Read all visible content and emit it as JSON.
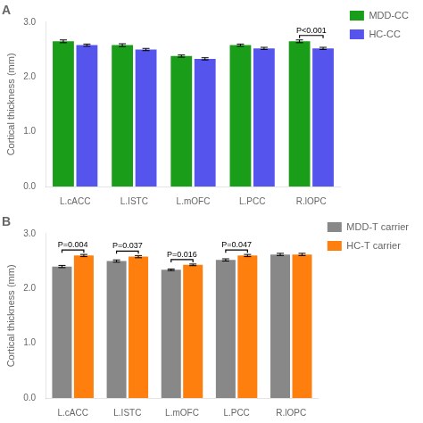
{
  "chart_data": [
    {
      "type": "bar",
      "title": "A",
      "categories": [
        "L.cACC",
        "L.ISTC",
        "L.mOFC",
        "L.PCC",
        "R.lOPC"
      ],
      "series": [
        {
          "name": "MDD-CC",
          "color": "#1a9e1a",
          "values": [
            2.65,
            2.58,
            2.38,
            2.58,
            2.65
          ],
          "errors": [
            0.025,
            0.025,
            0.02,
            0.02,
            0.025
          ]
        },
        {
          "name": "HC-CC",
          "color": "#5555ee",
          "values": [
            2.58,
            2.5,
            2.33,
            2.52,
            2.52
          ],
          "errors": [
            0.02,
            0.02,
            0.02,
            0.02,
            0.02
          ]
        }
      ],
      "ylabel": "Cortical thickness (mm)",
      "ylim": [
        0,
        3.0
      ],
      "yticks": [
        {
          "value": 0,
          "label": "0.0"
        },
        {
          "value": 1.0,
          "label": "1.0"
        },
        {
          "value": 2.0,
          "label": "2.0"
        },
        {
          "value": 3.0,
          "label": "3.0"
        }
      ],
      "grid": false,
      "legend": "right",
      "annotations": [
        {
          "text": "P<0.001",
          "category": "R.lOPC"
        }
      ]
    },
    {
      "type": "bar",
      "title": "B",
      "categories": [
        "L.cACC",
        "L.ISTC",
        "L.mOFC",
        "L.PCC",
        "R.lOPC"
      ],
      "series": [
        {
          "name": "MDD-T carrier",
          "color": "#888888",
          "values": [
            2.4,
            2.5,
            2.34,
            2.52,
            2.62
          ],
          "errors": [
            0.02,
            0.02,
            0.015,
            0.02,
            0.02
          ]
        },
        {
          "name": "HC-T carrier",
          "color": "#ff7f0e",
          "values": [
            2.6,
            2.58,
            2.43,
            2.6,
            2.62
          ],
          "errors": [
            0.02,
            0.02,
            0.015,
            0.02,
            0.02
          ]
        }
      ],
      "ylabel": "Cortical thickness (mm)",
      "ylim": [
        0,
        3.0
      ],
      "yticks": [
        {
          "value": 0,
          "label": "0.0"
        },
        {
          "value": 1.0,
          "label": "1.0"
        },
        {
          "value": 2.0,
          "label": "2.0"
        },
        {
          "value": 3.0,
          "label": "3.0"
        }
      ],
      "grid": false,
      "legend": "right",
      "annotations": [
        {
          "text": "P=0.004",
          "category": "L.cACC"
        },
        {
          "text": "P=0.037",
          "category": "L.ISTC"
        },
        {
          "text": "P=0.016",
          "category": "L.mOFC"
        },
        {
          "text": "P=0.047",
          "category": "L.PCC"
        }
      ]
    }
  ]
}
